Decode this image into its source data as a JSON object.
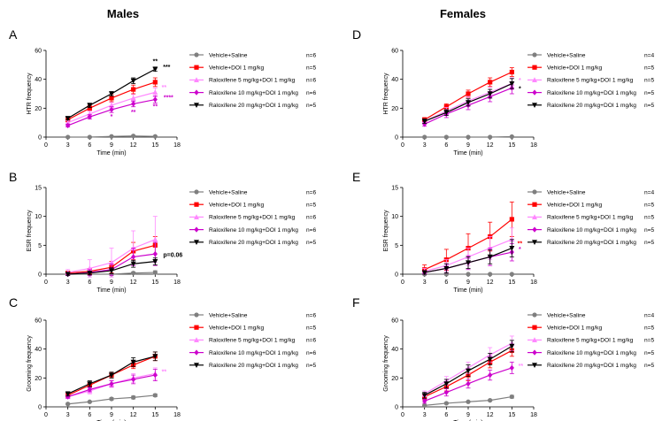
{
  "figure": {
    "titles": {
      "males": "Males",
      "females": "Females"
    },
    "colors": {
      "Vehicle+Saline": "#7f7f7f",
      "Vehicle+DOI": "#ff0000",
      "Ralox5": "#ff88ff",
      "Ralox10": "#cc00cc",
      "Ralox20": "#000000"
    }
  },
  "chart_data": [
    {
      "panel": "A",
      "type": "line",
      "sex": "Males",
      "xlabel": "Time (min)",
      "ylabel": "HTR frequency",
      "xlim": [
        0,
        18
      ],
      "ylim": [
        0,
        60
      ],
      "xticks": [
        0,
        3,
        6,
        9,
        12,
        15,
        18
      ],
      "yticks": [
        0,
        20,
        40,
        60
      ],
      "x": [
        3,
        6,
        9,
        12,
        15
      ],
      "series": [
        {
          "name": "Vehicle+Saline",
          "n": "n=6",
          "key": "Vehicle+Saline",
          "marker": "circle",
          "values": [
            0,
            0,
            0.5,
            0.8,
            0.5
          ],
          "err": [
            0.3,
            0.3,
            0.4,
            0.5,
            0.4
          ]
        },
        {
          "name": "Vehicle+DOI 1 mg/kg",
          "n": "n=5",
          "key": "Vehicle+DOI",
          "marker": "square",
          "values": [
            12,
            20,
            27,
            33,
            38
          ],
          "err": [
            1.5,
            2,
            2.5,
            3,
            3
          ]
        },
        {
          "name": "Raloxifene 5 mg/kg+DOI 1 mg/kg",
          "n": "n=6",
          "key": "Ralox5",
          "marker": "triangle",
          "values": [
            10,
            16,
            22,
            27,
            31
          ],
          "err": [
            1.5,
            2,
            2,
            2.5,
            3
          ]
        },
        {
          "name": "Raloxifene 10 mg/kg+DOI 1 mg/kg",
          "n": "n=6",
          "key": "Ralox10",
          "marker": "diamond",
          "values": [
            8,
            14,
            19,
            23,
            26
          ],
          "err": [
            1,
            1.5,
            2,
            2,
            2.5
          ]
        },
        {
          "name": "Raloxifene 20 mg/kg+DOI 1 mg/kg",
          "n": "n=5",
          "key": "Ralox20",
          "marker": "triangle-down",
          "values": [
            13,
            22,
            30,
            39,
            47
          ],
          "err": [
            1,
            1.5,
            1.5,
            2,
            1.5
          ]
        }
      ],
      "annotations": [
        {
          "x": 15,
          "y": 51,
          "text": "**",
          "key": "Ralox20",
          "dx": 0
        },
        {
          "x": 15,
          "y": 47,
          "text": "***",
          "key": "Ralox20",
          "dx": 13
        },
        {
          "x": 15,
          "y": 33,
          "text": "**",
          "key": "Ralox5",
          "dx": 10
        },
        {
          "x": 15,
          "y": 26,
          "text": "****",
          "key": "Ralox10",
          "dx": 15
        },
        {
          "x": 12,
          "y": 16,
          "text": "**",
          "key": "Ralox10",
          "dx": 0
        },
        {
          "x": 15,
          "y": 20,
          "text": "**",
          "key": "Ralox10",
          "dx": 0
        },
        {
          "x": 9,
          "y": 13,
          "text": "*",
          "key": "Ralox10",
          "dx": 0
        }
      ]
    },
    {
      "panel": "B",
      "type": "line",
      "sex": "Males",
      "xlabel": "Time (min)",
      "ylabel": "ESR frequency",
      "xlim": [
        0,
        18
      ],
      "ylim": [
        0,
        15
      ],
      "xticks": [
        0,
        3,
        6,
        9,
        12,
        15,
        18
      ],
      "yticks": [
        0,
        5,
        10,
        15
      ],
      "x": [
        3,
        6,
        9,
        12,
        15
      ],
      "series": [
        {
          "name": "Vehicle+Saline",
          "n": "n=6",
          "key": "Vehicle+Saline",
          "marker": "circle",
          "values": [
            0,
            0,
            0,
            0.2,
            0.3
          ],
          "err": [
            0,
            0,
            0,
            0.2,
            0.3
          ]
        },
        {
          "name": "Vehicle+DOI 1 mg/kg",
          "n": "n=5",
          "key": "Vehicle+DOI",
          "marker": "square",
          "values": [
            0.2,
            0.5,
            1.2,
            4,
            5
          ],
          "err": [
            0.2,
            0.5,
            1,
            1.5,
            1.5
          ]
        },
        {
          "name": "Raloxifene 5 mg/kg+DOI 1 mg/kg",
          "n": "n=6",
          "key": "Ralox5",
          "marker": "triangle",
          "values": [
            0.3,
            1,
            2,
            4.5,
            6
          ],
          "err": [
            0.5,
            1.5,
            2.5,
            3,
            4
          ]
        },
        {
          "name": "Raloxifene 10 mg/kg+DOI 1 mg/kg",
          "n": "n=6",
          "key": "Ralox10",
          "marker": "diamond",
          "values": [
            0,
            0.3,
            0.8,
            3,
            3.5
          ],
          "err": [
            0.2,
            0.5,
            1,
            1.5,
            2
          ]
        },
        {
          "name": "Raloxifene 20 mg/kg+DOI 1 mg/kg",
          "n": "n=5",
          "key": "Ralox20",
          "marker": "triangle-down",
          "values": [
            0,
            0.2,
            0.6,
            1.8,
            2.2
          ],
          "err": [
            0.2,
            0.3,
            0.5,
            0.6,
            0.6
          ]
        }
      ],
      "annotations": [
        {
          "x": 15,
          "y": 3,
          "text": "p=0.06",
          "key": "Ralox20",
          "dx": 20
        }
      ]
    },
    {
      "panel": "C",
      "type": "line",
      "sex": "Males",
      "xlabel": "Time (min)",
      "ylabel": "Grooming frequency",
      "xlim": [
        0,
        18
      ],
      "ylim": [
        0,
        60
      ],
      "xticks": [
        0,
        3,
        6,
        9,
        12,
        15,
        18
      ],
      "yticks": [
        0,
        20,
        40,
        60
      ],
      "x": [
        3,
        6,
        9,
        12,
        15
      ],
      "series": [
        {
          "name": "Vehicle+Saline",
          "n": "n=6",
          "key": "Vehicle+Saline",
          "marker": "circle",
          "values": [
            2,
            3.5,
            5.5,
            6.5,
            8
          ],
          "err": [
            0.5,
            0.5,
            0.8,
            1,
            1
          ]
        },
        {
          "name": "Vehicle+DOI 1 mg/kg",
          "n": "n=5",
          "key": "Vehicle+DOI",
          "marker": "square",
          "values": [
            8,
            15,
            22,
            29,
            35
          ],
          "err": [
            1,
            1.5,
            2,
            2.5,
            3
          ]
        },
        {
          "name": "Raloxifene 5 mg/kg+DOI 1 mg/kg",
          "n": "n=6",
          "key": "Ralox5",
          "marker": "triangle",
          "values": [
            7,
            11,
            16,
            20,
            23
          ],
          "err": [
            1,
            2,
            2.5,
            3,
            4
          ]
        },
        {
          "name": "Raloxifene 10 mg/kg+DOI 1 mg/kg",
          "n": "n=6",
          "key": "Ralox10",
          "marker": "diamond",
          "values": [
            7,
            12,
            16,
            19,
            22
          ],
          "err": [
            1,
            1.5,
            2,
            3,
            4
          ]
        },
        {
          "name": "Raloxifene 20 mg/kg+DOI 1 mg/kg",
          "n": "n=5",
          "key": "Ralox20",
          "marker": "triangle-down",
          "values": [
            9,
            16,
            22,
            31,
            35
          ],
          "err": [
            1.5,
            2,
            2,
            3,
            3
          ]
        }
      ],
      "annotations": [
        {
          "x": 15,
          "y": 23,
          "text": "**",
          "key": "Ralox5",
          "dx": 10
        }
      ]
    },
    {
      "panel": "D",
      "type": "line",
      "sex": "Females",
      "xlabel": "Time (min)",
      "ylabel": "HTR frequency",
      "xlim": [
        0,
        18
      ],
      "ylim": [
        0,
        60
      ],
      "xticks": [
        0,
        3,
        6,
        9,
        12,
        15,
        18
      ],
      "yticks": [
        0,
        20,
        40,
        60
      ],
      "x": [
        3,
        6,
        9,
        12,
        15
      ],
      "series": [
        {
          "name": "Vehicle+Saline",
          "n": "n=4",
          "key": "Vehicle+Saline",
          "marker": "circle",
          "values": [
            0,
            0,
            0,
            0,
            0.3
          ],
          "err": [
            0,
            0,
            0,
            0,
            0.2
          ]
        },
        {
          "name": "Vehicle+DOI 1 mg/kg",
          "n": "n=5",
          "key": "Vehicle+DOI",
          "marker": "square",
          "values": [
            12,
            21,
            30,
            38,
            45
          ],
          "err": [
            1.5,
            2,
            2.5,
            3,
            3
          ]
        },
        {
          "name": "Raloxifene 5 mg/kg+DOI 1 mg/kg",
          "n": "n=5",
          "key": "Ralox5",
          "marker": "triangle",
          "values": [
            11,
            18,
            25,
            31,
            37
          ],
          "err": [
            1.5,
            2.5,
            3,
            3.5,
            4
          ]
        },
        {
          "name": "Raloxifene 10 mg/kg+DOI 1 mg/kg",
          "n": "n=5",
          "key": "Ralox10",
          "marker": "diamond",
          "values": [
            9,
            16,
            22,
            28,
            34
          ],
          "err": [
            1.5,
            2.5,
            3,
            3.5,
            4
          ]
        },
        {
          "name": "Raloxifene 20 mg/kg+DOI 1 mg/kg",
          "n": "n=5",
          "key": "Ralox20",
          "marker": "triangle-down",
          "values": [
            11,
            17,
            24,
            30,
            37
          ],
          "err": [
            1.5,
            2,
            2.5,
            3,
            3.5
          ]
        }
      ],
      "annotations": [
        {
          "x": 15,
          "y": 38,
          "text": "*",
          "key": "Ralox5",
          "dx": 9
        },
        {
          "x": 15,
          "y": 32,
          "text": "*",
          "key": "Ralox20",
          "dx": 9
        }
      ]
    },
    {
      "panel": "E",
      "type": "line",
      "sex": "Females",
      "xlabel": "Time (min)",
      "ylabel": "ESR frequency",
      "xlim": [
        0,
        18
      ],
      "ylim": [
        0,
        15
      ],
      "xticks": [
        0,
        3,
        6,
        9,
        12,
        15,
        18
      ],
      "yticks": [
        0,
        5,
        10,
        15
      ],
      "x": [
        3,
        6,
        9,
        12,
        15
      ],
      "series": [
        {
          "name": "Vehicle+Saline",
          "n": "n=4",
          "key": "Vehicle+Saline",
          "marker": "circle",
          "values": [
            0,
            0,
            0,
            0,
            0
          ],
          "err": [
            0,
            0,
            0,
            0,
            0
          ]
        },
        {
          "name": "Vehicle+DOI 1 mg/kg",
          "n": "n=5",
          "key": "Vehicle+DOI",
          "marker": "square",
          "values": [
            0.8,
            2.5,
            4.5,
            6.5,
            9.5
          ],
          "err": [
            0.8,
            1.8,
            2.5,
            2.5,
            3
          ]
        },
        {
          "name": "Raloxifene 5 mg/kg+DOI 1 mg/kg",
          "n": "n=5",
          "key": "Ralox5",
          "marker": "triangle",
          "values": [
            0.5,
            1.5,
            3,
            4.5,
            6
          ],
          "err": [
            0.5,
            1,
            1.5,
            2,
            2
          ]
        },
        {
          "name": "Raloxifene 10 mg/kg+DOI 1 mg/kg",
          "n": "n=5",
          "key": "Ralox10",
          "marker": "diamond",
          "values": [
            0.3,
            1,
            2,
            3,
            3.8
          ],
          "err": [
            0.3,
            0.8,
            1.2,
            1.5,
            1.5
          ]
        },
        {
          "name": "Raloxifene 20 mg/kg+DOI 1 mg/kg",
          "n": "n=5",
          "key": "Ralox20",
          "marker": "triangle-down",
          "values": [
            0.3,
            1,
            2,
            3,
            4.5
          ],
          "err": [
            0.3,
            0.8,
            1,
            1.2,
            1.5
          ]
        }
      ],
      "annotations": [
        {
          "x": 15,
          "y": 5,
          "text": "**",
          "key": "Vehicle+DOI",
          "dx": 9
        },
        {
          "x": 15,
          "y": 4,
          "text": "*",
          "key": "Ralox10",
          "dx": 9
        }
      ]
    },
    {
      "panel": "F",
      "type": "line",
      "sex": "Females",
      "xlabel": "Time (min)",
      "ylabel": "Grooming frequency",
      "xlim": [
        0,
        18
      ],
      "ylim": [
        0,
        60
      ],
      "xticks": [
        0,
        3,
        6,
        9,
        12,
        15,
        18
      ],
      "yticks": [
        0,
        20,
        40,
        60
      ],
      "x": [
        3,
        6,
        9,
        12,
        15
      ],
      "series": [
        {
          "name": "Vehicle+Saline",
          "n": "n=4",
          "key": "Vehicle+Saline",
          "marker": "circle",
          "values": [
            1,
            2.5,
            3.5,
            4.5,
            7
          ],
          "err": [
            0.3,
            0.5,
            0.5,
            0.5,
            1
          ]
        },
        {
          "name": "Vehicle+DOI 1 mg/kg",
          "n": "n=5",
          "key": "Vehicle+DOI",
          "marker": "square",
          "values": [
            7,
            14,
            22,
            31,
            39
          ],
          "err": [
            2,
            3,
            4,
            4,
            4
          ]
        },
        {
          "name": "Raloxifene 5 mg/kg+DOI 1 mg/kg",
          "n": "n=5",
          "key": "Ralox5",
          "marker": "triangle",
          "values": [
            9,
            18,
            27,
            36,
            44
          ],
          "err": [
            2,
            3,
            4,
            5,
            5
          ]
        },
        {
          "name": "Raloxifene 10 mg/kg+DOI 1 mg/kg",
          "n": "n=5",
          "key": "Ralox10",
          "marker": "diamond",
          "values": [
            4,
            10,
            16,
            22,
            27
          ],
          "err": [
            1.5,
            2.5,
            3,
            3.5,
            4
          ]
        },
        {
          "name": "Raloxifene 20 mg/kg+DOI 1 mg/kg",
          "n": "n=5",
          "key": "Ralox20",
          "marker": "triangle-down",
          "values": [
            8,
            16,
            25,
            33,
            42
          ],
          "err": [
            2,
            3,
            4,
            4,
            4
          ]
        }
      ],
      "annotations": [
        {
          "x": 15,
          "y": 27,
          "text": "**",
          "key": "Ralox5",
          "dx": 10
        }
      ]
    }
  ]
}
